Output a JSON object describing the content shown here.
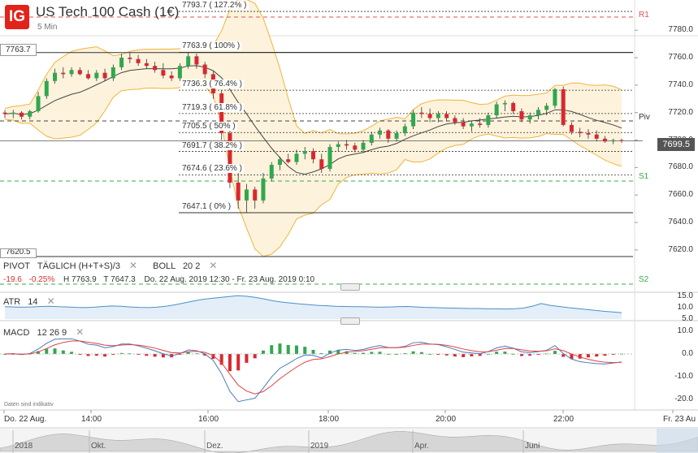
{
  "header": {
    "logo": "IG",
    "title": "US Tech 100 Cash (1€)",
    "timeframe": "5 Min"
  },
  "indicators_bar": {
    "pivot_name": "PIVOT",
    "pivot_params": "TÄGLICH  (H+T+S)/3",
    "boll_name": "BOLL",
    "boll_params": "20  2",
    "close_icon": "close-icon"
  },
  "info_line": {
    "change": "-19.6",
    "change_pct": "-0.25%",
    "high": "H 7763.9",
    "low": "T 7647.3",
    "range": "Do. 22 Aug. 2019 12:30 - Fr. 23 Aug. 2019 0:10"
  },
  "price_axis": [
    "7780.0",
    "7760.0",
    "7740.0",
    "7720.0",
    "7700.0",
    "7680.0",
    "7660.0",
    "7640.0",
    "7620.0"
  ],
  "current_price": "7699.5",
  "left_markers": {
    "top": "7763.7",
    "bottom": "7620.5"
  },
  "pivot_levels": {
    "r1": "R1",
    "piv": "Piv",
    "s1": "S1",
    "s2": "S2"
  },
  "fib_levels": [
    {
      "label": "7793.7 ( 127.2% )",
      "price": 7793.7
    },
    {
      "label": "7763.9 ( 100% )",
      "price": 7763.9
    },
    {
      "label": "7736.3 ( 76.4% )",
      "price": 7736.3
    },
    {
      "label": "7719.3 ( 61.8% )",
      "price": 7719.3
    },
    {
      "label": "7705.5 ( 50% )",
      "price": 7705.5
    },
    {
      "label": "7691.7 ( 38.2% )",
      "price": 7691.7
    },
    {
      "label": "7674.6 ( 23.6% )",
      "price": 7674.6
    },
    {
      "label": "7647.1 ( 0% )",
      "price": 7647.1
    }
  ],
  "atr": {
    "name": "ATR",
    "params": "14",
    "axis": [
      "15.0",
      "10.0",
      "5.0"
    ],
    "values": [
      10.4,
      10.3,
      10.2,
      10.3,
      10.5,
      10.6,
      10.4,
      10.3,
      10.1,
      10.0,
      10.2,
      10.5,
      10.7,
      10.6,
      10.3,
      10.1,
      10.0,
      10.2,
      10.6,
      11.2,
      12.0,
      12.8,
      13.5,
      14.0,
      14.4,
      14.8,
      15.2,
      15.0,
      14.5,
      13.8,
      13.0,
      12.4,
      12.0,
      11.6,
      11.3,
      11.0,
      10.8,
      10.6,
      10.5,
      10.4,
      10.4,
      10.3,
      10.2,
      10.3,
      10.4,
      10.5,
      10.3,
      10.1,
      10.0,
      9.9,
      9.8,
      9.7,
      9.6,
      9.6,
      9.5,
      9.5,
      9.4,
      9.5,
      9.8,
      10.6,
      11.8,
      11.0,
      10.5,
      10.0,
      9.6,
      9.2,
      8.8,
      8.4,
      8.1,
      7.8
    ]
  },
  "macd": {
    "name": "MACD",
    "params": "12  26  9",
    "axis": [
      "10.0",
      "0.0",
      "-10.0",
      "-20.0"
    ]
  },
  "time_axis": [
    "Do. 22 Aug.",
    "14:00",
    "16:00",
    "18:00",
    "20:00",
    "22:00",
    "Fr. 23 Au"
  ],
  "navigator": [
    "2018",
    "Okt.",
    "Dez.",
    "2019",
    "Apr.",
    "Juni"
  ],
  "disclaimer": "Daten sind indikativ",
  "colors": {
    "up": "#2fa84f",
    "down": "#d9282f",
    "bollinger": "#f0b43c",
    "bollinger_fill": "#fdf3dc",
    "ma": "#444444",
    "atr_line": "#4a90c8",
    "macd_line": "#4a78b8",
    "signal_line": "#e04040",
    "pivot": "#444444",
    "r1": "#e05050",
    "s1": "#3aaa4a"
  },
  "chart_data": {
    "type": "candlestick",
    "interval": "5 Min",
    "ylim": [
      7614,
      7802
    ],
    "candles": [
      [
        7720,
        7722,
        7716,
        7719
      ],
      [
        7719,
        7722,
        7716,
        7720
      ],
      [
        7720,
        7721,
        7715,
        7717
      ],
      [
        7717,
        7722,
        7715,
        7721
      ],
      [
        7721,
        7735,
        7720,
        7732
      ],
      [
        7732,
        7745,
        7730,
        7743
      ],
      [
        7743,
        7752,
        7741,
        7749
      ],
      [
        7749,
        7753,
        7745,
        7748
      ],
      [
        7748,
        7753,
        7746,
        7751
      ],
      [
        7751,
        7753,
        7747,
        7748
      ],
      [
        7748,
        7751,
        7744,
        7745
      ],
      [
        7745,
        7751,
        7743,
        7749
      ],
      [
        7749,
        7752,
        7743,
        7745
      ],
      [
        7745,
        7755,
        7743,
        7753
      ],
      [
        7753,
        7763,
        7751,
        7760
      ],
      [
        7760,
        7764,
        7756,
        7759
      ],
      [
        7759,
        7762,
        7754,
        7756
      ],
      [
        7756,
        7759,
        7752,
        7754
      ],
      [
        7754,
        7757,
        7749,
        7751
      ],
      [
        7751,
        7756,
        7745,
        7747
      ],
      [
        7747,
        7750,
        7743,
        7745
      ],
      [
        7745,
        7756,
        7743,
        7754
      ],
      [
        7754,
        7764,
        7752,
        7761
      ],
      [
        7761,
        7763,
        7752,
        7755
      ],
      [
        7755,
        7757,
        7745,
        7748
      ],
      [
        7748,
        7750,
        7730,
        7734
      ],
      [
        7734,
        7736,
        7700,
        7705
      ],
      [
        7705,
        7707,
        7665,
        7669
      ],
      [
        7669,
        7676,
        7650,
        7656
      ],
      [
        7656,
        7668,
        7647,
        7664
      ],
      [
        7664,
        7666,
        7650,
        7656
      ],
      [
        7656,
        7676,
        7654,
        7672
      ],
      [
        7672,
        7684,
        7670,
        7682
      ],
      [
        7682,
        7688,
        7678,
        7686
      ],
      [
        7686,
        7690,
        7683,
        7684
      ],
      [
        7684,
        7693,
        7682,
        7690
      ],
      [
        7690,
        7695,
        7686,
        7692
      ],
      [
        7692,
        7694,
        7683,
        7686
      ],
      [
        7686,
        7690,
        7676,
        7679
      ],
      [
        7679,
        7697,
        7677,
        7695
      ],
      [
        7695,
        7699,
        7692,
        7697
      ],
      [
        7697,
        7700,
        7693,
        7696
      ],
      [
        7696,
        7698,
        7691,
        7693
      ],
      [
        7693,
        7700,
        7691,
        7698
      ],
      [
        7698,
        7706,
        7696,
        7704
      ],
      [
        7704,
        7709,
        7701,
        7707
      ],
      [
        7707,
        7708,
        7698,
        7701
      ],
      [
        7701,
        7707,
        7699,
        7705
      ],
      [
        7705,
        7712,
        7703,
        7710
      ],
      [
        7710,
        7722,
        7708,
        7720
      ],
      [
        7720,
        7724,
        7716,
        7719
      ],
      [
        7719,
        7723,
        7713,
        7716
      ],
      [
        7716,
        7721,
        7713,
        7719
      ],
      [
        7719,
        7721,
        7714,
        7716
      ],
      [
        7716,
        7718,
        7711,
        7713
      ],
      [
        7713,
        7716,
        7708,
        7710
      ],
      [
        7710,
        7714,
        7706,
        7712
      ],
      [
        7712,
        7716,
        7709,
        7711
      ],
      [
        7711,
        7720,
        7709,
        7718
      ],
      [
        7718,
        7728,
        7716,
        7726
      ],
      [
        7726,
        7729,
        7721,
        7727
      ],
      [
        7727,
        7728,
        7719,
        7721
      ],
      [
        7721,
        7723,
        7713,
        7715
      ],
      [
        7715,
        7720,
        7712,
        7718
      ],
      [
        7718,
        7724,
        7715,
        7722
      ],
      [
        7722,
        7727,
        7718,
        7725
      ],
      [
        7725,
        7738,
        7723,
        7737
      ],
      [
        7737,
        7739,
        7710,
        7711
      ],
      [
        7711,
        7713,
        7704,
        7706
      ],
      [
        7706,
        7709,
        7702,
        7705
      ],
      [
        7705,
        7708,
        7701,
        7704
      ],
      [
        7704,
        7707,
        7699,
        7701
      ],
      [
        7701,
        7703,
        7698,
        7699
      ],
      [
        7699,
        7701,
        7697,
        7700
      ],
      [
        7700,
        7701,
        7698,
        7699.5
      ]
    ]
  }
}
